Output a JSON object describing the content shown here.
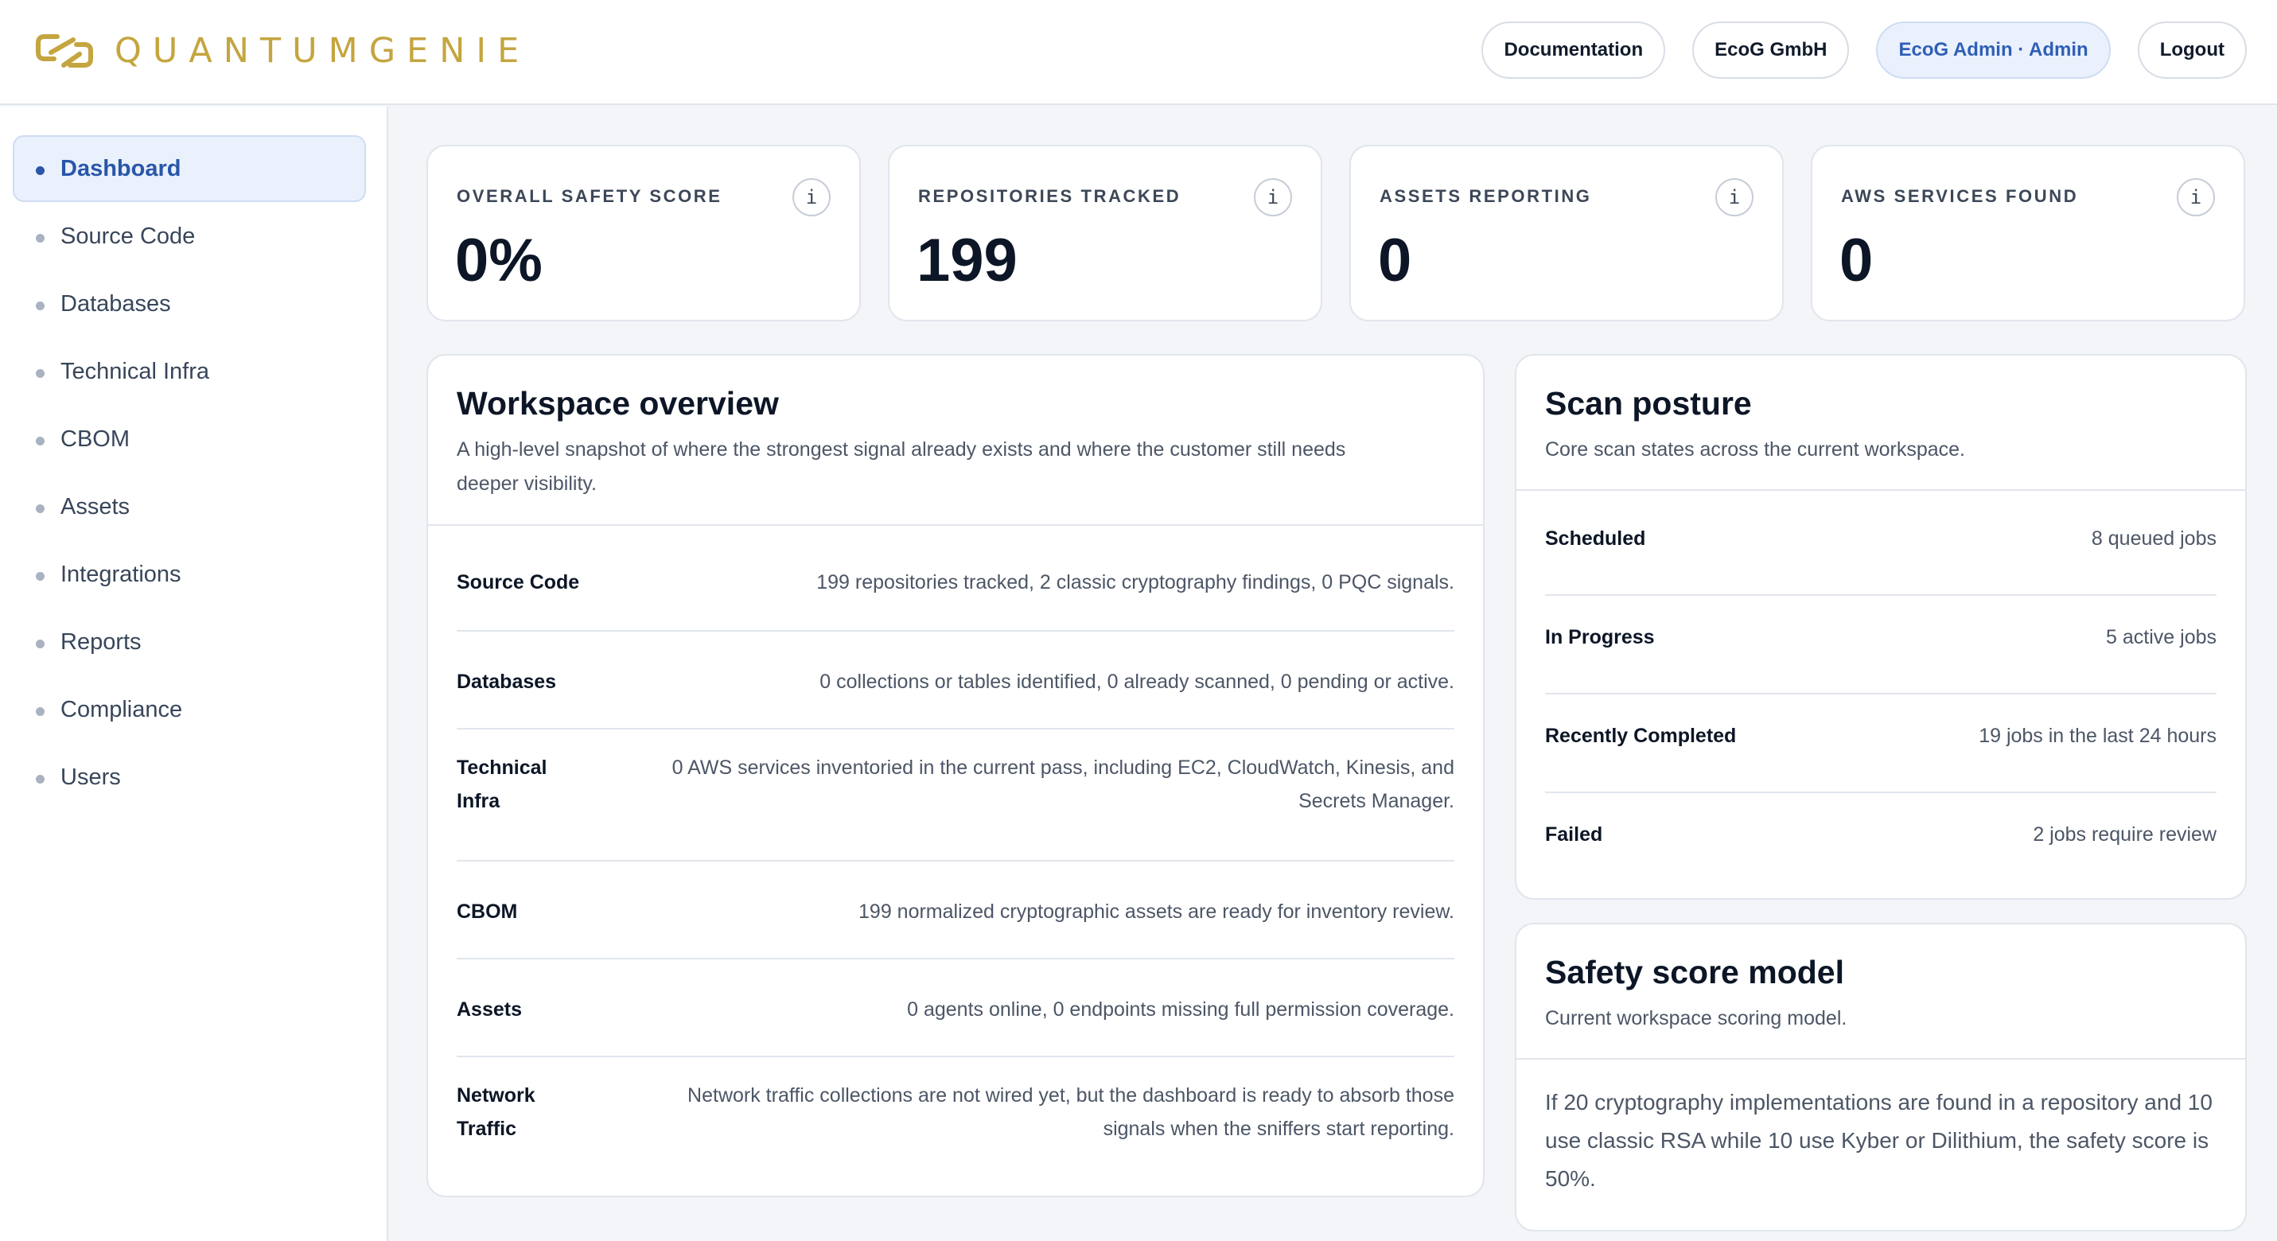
{
  "header": {
    "brand": "QUANTUMGENIE",
    "actions": [
      {
        "label": "Documentation"
      },
      {
        "label": "EcoG GmbH"
      },
      {
        "label": "EcoG Admin · Admin"
      },
      {
        "label": "Logout"
      }
    ]
  },
  "sidebar": {
    "items": [
      {
        "label": "Dashboard"
      },
      {
        "label": "Source Code"
      },
      {
        "label": "Databases"
      },
      {
        "label": "Technical Infra"
      },
      {
        "label": "CBOM"
      },
      {
        "label": "Assets"
      },
      {
        "label": "Integrations"
      },
      {
        "label": "Reports"
      },
      {
        "label": "Compliance"
      },
      {
        "label": "Users"
      }
    ]
  },
  "stats": [
    {
      "label": "OVERALL SAFETY SCORE",
      "value": "0%",
      "info": "i"
    },
    {
      "label": "REPOSITORIES TRACKED",
      "value": "199",
      "info": "i"
    },
    {
      "label": "ASSETS REPORTING",
      "value": "0",
      "info": "i"
    },
    {
      "label": "AWS SERVICES FOUND",
      "value": "0",
      "info": "i"
    }
  ],
  "workspace": {
    "title": "Workspace overview",
    "subtitle": "A high-level snapshot of where the strongest signal already exists and where the customer still needs deeper visibility.",
    "rows": [
      {
        "label": "Source Code",
        "value": "199 repositories tracked, 2 classic cryptography findings, 0 PQC signals."
      },
      {
        "label": "Databases",
        "value": "0 collections or tables identified, 0 already scanned, 0 pending or active."
      },
      {
        "label": "Technical Infra",
        "value": "0 AWS services inventoried in the current pass, including EC2, CloudWatch, Kinesis, and Secrets Manager."
      },
      {
        "label": "CBOM",
        "value": "199 normalized cryptographic assets are ready for inventory review."
      },
      {
        "label": "Assets",
        "value": "0 agents online, 0 endpoints missing full permission coverage."
      },
      {
        "label": "Network Traffic",
        "value": "Network traffic collections are not wired yet, but the dashboard is ready to absorb those signals when the sniffers start reporting."
      }
    ]
  },
  "scan": {
    "title": "Scan posture",
    "subtitle": "Core scan states across the current workspace.",
    "rows": [
      {
        "label": "Scheduled",
        "value": "8 queued jobs"
      },
      {
        "label": "In Progress",
        "value": "5 active jobs"
      },
      {
        "label": "Recently Completed",
        "value": "19 jobs in the last 24 hours"
      },
      {
        "label": "Failed",
        "value": "2 jobs require review"
      }
    ]
  },
  "model": {
    "title": "Safety score model",
    "subtitle": "Current workspace scoring model.",
    "text": "If 20 cryptography implementations are found in a repository and 10 use classic RSA while 10 use Kyber or Dilithium, the safety score is 50%."
  },
  "colors": {
    "brand": "#c4a53f",
    "accent": "#2a56a8",
    "accent_bg": "#eaf1fd"
  }
}
